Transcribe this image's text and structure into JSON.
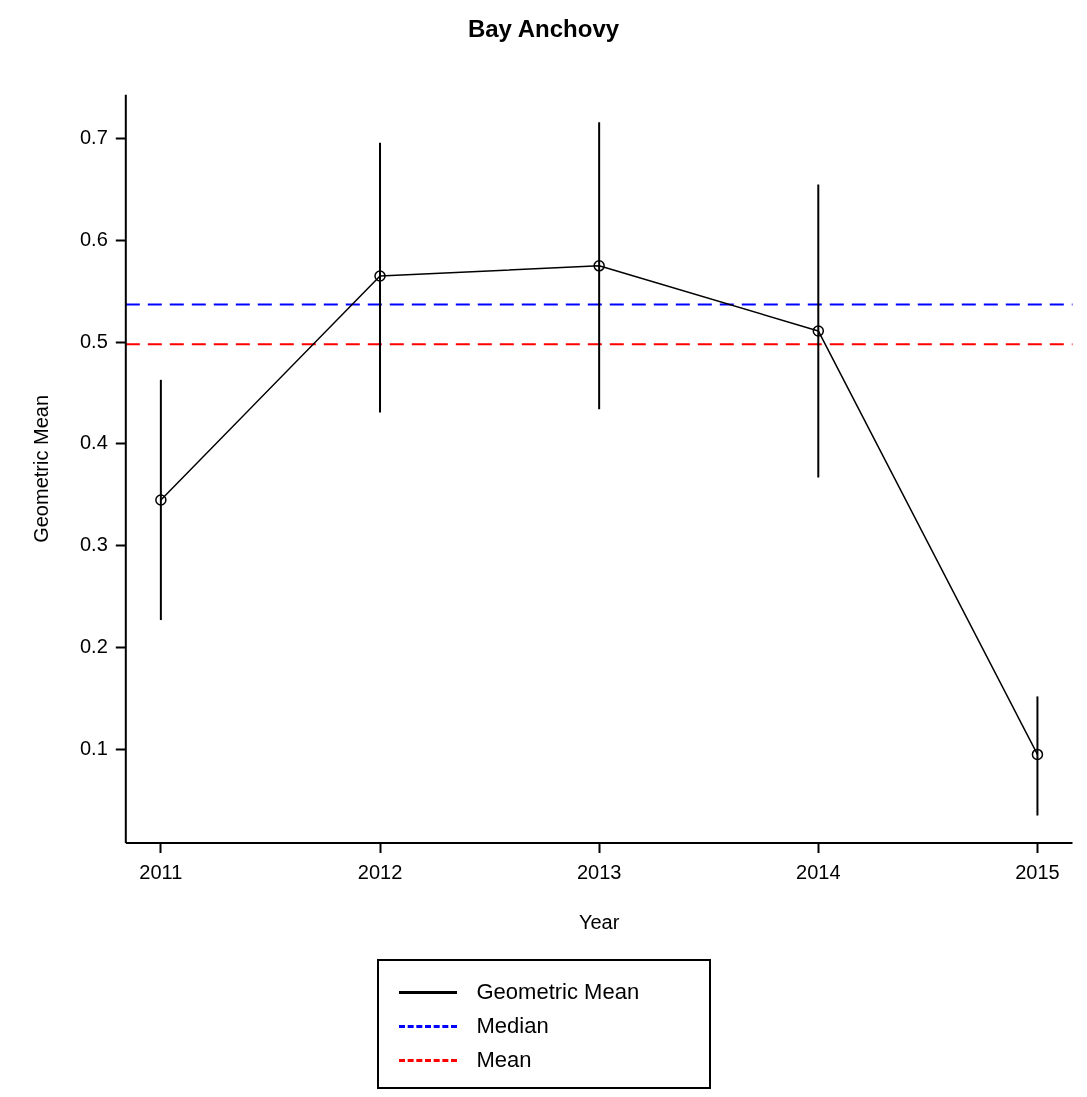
{
  "chart_data": {
    "type": "line",
    "title": "Bay Anchovy",
    "xlabel": "Year",
    "ylabel": "Geometric Mean",
    "x": [
      2011,
      2012,
      2013,
      2014,
      2015
    ],
    "series": [
      {
        "name": "Geometric Mean",
        "color": "#000000",
        "values": [
          0.345,
          0.565,
          0.575,
          0.511,
          0.095
        ],
        "errors": [
          [
            0.227,
            0.463
          ],
          [
            0.431,
            0.696
          ],
          [
            0.434,
            0.716
          ],
          [
            0.367,
            0.655
          ],
          [
            0.035,
            0.152
          ]
        ]
      }
    ],
    "xlim": [
      2010.84,
      2015.16
    ],
    "xticks": [
      2011,
      2012,
      2013,
      2014,
      2015
    ],
    "ylim": [
      0.008,
      0.743
    ],
    "yticks": [
      0.1,
      0.2,
      0.3,
      0.4,
      0.5,
      0.6,
      0.7
    ],
    "ref_lines": [
      {
        "axis": "y",
        "value": 0.537,
        "label": "Median",
        "color": "#0000ff",
        "line_style": "dashed"
      },
      {
        "axis": "y",
        "value": 0.498,
        "label": "Mean",
        "color": "#ff0000",
        "line_style": "dashed"
      }
    ],
    "marker": "circle",
    "line_style": "solid",
    "grid": false,
    "legend": "bottom"
  }
}
